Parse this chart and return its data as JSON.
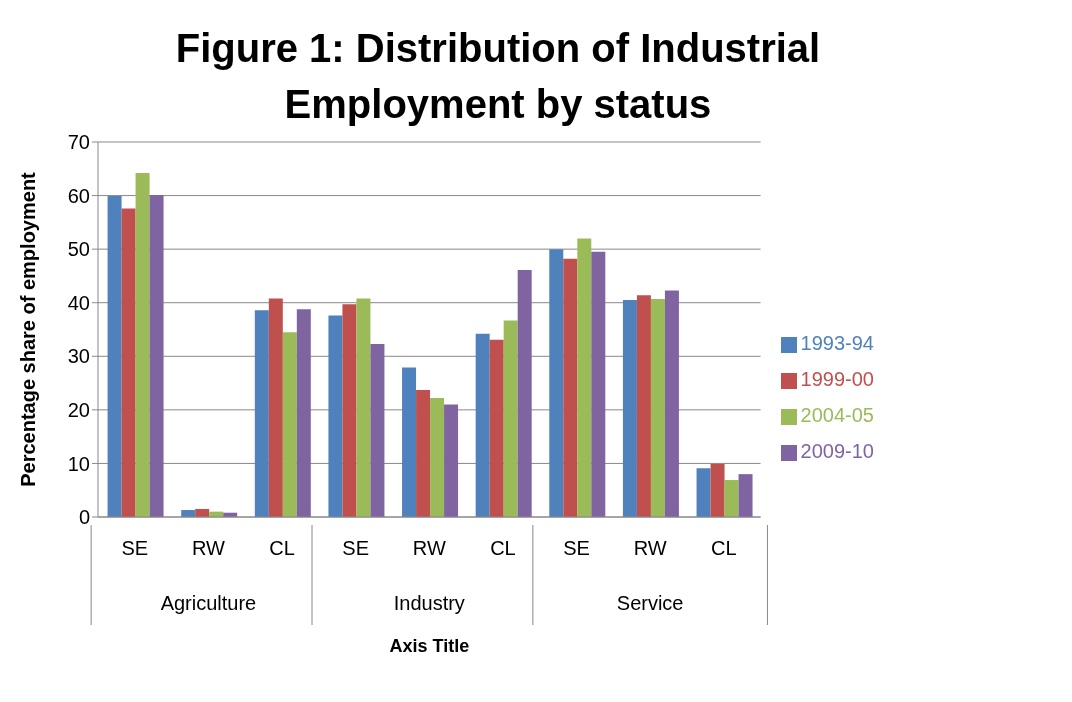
{
  "chart_data": {
    "type": "bar",
    "title": "Figure 1: Distribution of Industrial Employment by status",
    "xlabel": "Axis Title",
    "ylabel": "Percentage share of employment",
    "categories": [
      "SE",
      "RW",
      "CL",
      "SE",
      "RW",
      "CL",
      "SE",
      "RW",
      "CL"
    ],
    "annotations": [
      "Agriculture",
      "Industry",
      "Service"
    ],
    "series": [
      {
        "name": "1993-94",
        "color": "#4f81bd",
        "values": [
          59.9,
          1.3,
          38.6,
          37.6,
          27.9,
          34.2,
          50.0,
          40.5,
          9.1
        ]
      },
      {
        "name": "1999-00",
        "color": "#c0504d",
        "values": [
          57.6,
          1.5,
          40.8,
          39.7,
          23.7,
          33.1,
          48.2,
          41.4,
          9.9
        ]
      },
      {
        "name": "2004-05",
        "color": "#9bbb59",
        "values": [
          64.2,
          1.0,
          34.5,
          40.8,
          22.2,
          36.7,
          52.0,
          40.7,
          6.9
        ]
      },
      {
        "name": "2009-10",
        "color": "#8064a2",
        "values": [
          60.1,
          0.8,
          38.8,
          32.3,
          21.0,
          46.1,
          49.5,
          42.3,
          8.0
        ]
      }
    ],
    "ylim": [
      0,
      70
    ],
    "yticks": [
      0,
      10,
      20,
      30,
      40,
      50,
      60,
      70
    ],
    "grid": "y",
    "legend": "right"
  }
}
